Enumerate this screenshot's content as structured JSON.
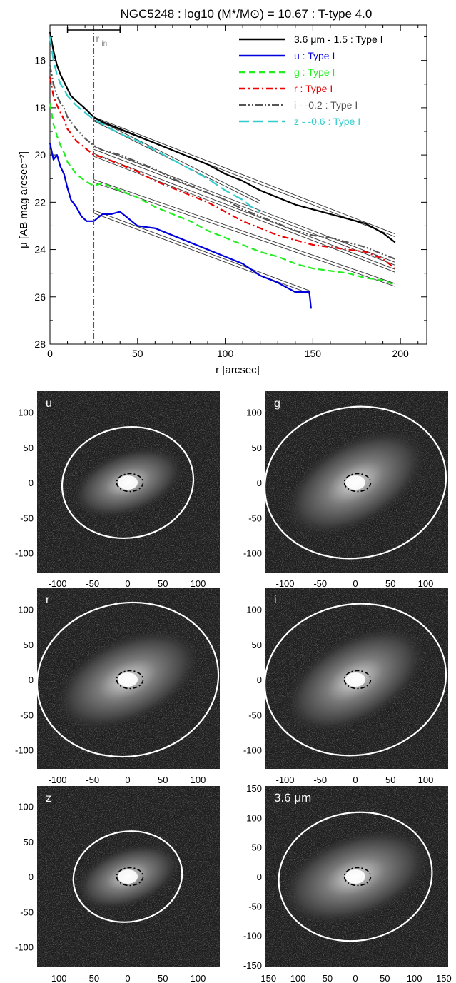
{
  "chart_data": [
    {
      "type": "line",
      "title": "NGC5248 : log10 (M*/M⊙) = 10.67 : T-type 4.0",
      "xlabel": "r [arcsec]",
      "ylabel": "μ [AB mag arcsec⁻²]",
      "xlim": [
        0,
        215
      ],
      "ylim": [
        28,
        14.5
      ],
      "y_inverted": true,
      "xticks": [
        "0",
        "50",
        "100",
        "150",
        "200"
      ],
      "yticks": [
        "16",
        "18",
        "20",
        "22",
        "24",
        "26",
        "28"
      ],
      "grid": false,
      "legend_position": "top-right",
      "annotation": {
        "label": "r",
        "subscript": "in",
        "r_in": 25,
        "bar_range": [
          10,
          40
        ]
      },
      "series": [
        {
          "name": "3.6 μm - 1.5 : Type I",
          "color": "#000000",
          "dash": "solid",
          "x": [
            0,
            2,
            4,
            6,
            8,
            10,
            12,
            15,
            18,
            21,
            25,
            30,
            40,
            50,
            60,
            70,
            80,
            90,
            100,
            110,
            120,
            130,
            140,
            150,
            160,
            170,
            180,
            190,
            197
          ],
          "y": [
            14.8,
            15.6,
            16.2,
            16.6,
            16.9,
            17.2,
            17.5,
            17.7,
            17.9,
            18.1,
            18.4,
            18.6,
            18.9,
            19.2,
            19.5,
            19.8,
            20.1,
            20.4,
            20.8,
            21.1,
            21.5,
            21.8,
            22.1,
            22.3,
            22.5,
            22.7,
            22.9,
            23.3,
            23.7
          ],
          "fit": {
            "x0": 25,
            "y0": 18.45,
            "x1": 197,
            "y1": 23.4
          }
        },
        {
          "name": "u : Type I",
          "color": "#0000dd",
          "dash": "solid",
          "x": [
            0,
            2,
            4,
            6,
            8,
            10,
            12,
            15,
            18,
            21,
            25,
            30,
            35,
            40,
            45,
            50,
            60,
            70,
            80,
            90,
            100,
            110,
            120,
            130,
            140,
            145,
            148,
            149
          ],
          "y": [
            19.5,
            20.2,
            20.0,
            20.5,
            20.8,
            21.4,
            21.9,
            22.2,
            22.6,
            22.8,
            22.8,
            22.5,
            22.5,
            22.4,
            22.7,
            23.0,
            23.1,
            23.4,
            23.7,
            24.0,
            24.3,
            24.6,
            25.1,
            25.4,
            25.8,
            25.8,
            25.8,
            26.5
          ],
          "fit": {
            "x0": 25,
            "y0": 22.4,
            "x1": 148,
            "y1": 25.8
          }
        },
        {
          "name": "g : Type I",
          "color": "#22ee22",
          "dash": "dash",
          "x": [
            0,
            2,
            4,
            6,
            8,
            10,
            15,
            20,
            25,
            30,
            40,
            50,
            60,
            70,
            80,
            90,
            100,
            110,
            120,
            130,
            140,
            150,
            160,
            170,
            180,
            190,
            197
          ],
          "y": [
            17.8,
            18.7,
            19.2,
            19.6,
            19.9,
            20.3,
            20.8,
            21.1,
            21.3,
            21.2,
            21.5,
            21.8,
            22.2,
            22.5,
            22.8,
            23.2,
            23.5,
            23.8,
            24.1,
            24.3,
            24.6,
            24.8,
            24.9,
            25.0,
            25.2,
            25.3,
            25.5
          ],
          "fit": {
            "x0": 25,
            "y0": 21.1,
            "x1": 197,
            "y1": 25.5
          }
        },
        {
          "name": "r : Type I",
          "color": "#ee0000",
          "dash": "dashdot",
          "x": [
            0,
            2,
            4,
            6,
            8,
            10,
            15,
            20,
            25,
            30,
            40,
            50,
            60,
            70,
            80,
            90,
            100,
            110,
            120,
            130,
            140,
            150,
            160,
            170,
            180,
            190,
            197
          ],
          "y": [
            16.7,
            17.5,
            17.9,
            18.2,
            18.5,
            18.9,
            19.4,
            19.7,
            20.0,
            20.1,
            20.4,
            20.7,
            21.1,
            21.4,
            21.7,
            22.0,
            22.4,
            22.8,
            23.1,
            23.4,
            23.6,
            23.8,
            23.9,
            24.0,
            24.1,
            24.4,
            24.8
          ],
          "fit": {
            "x0": 25,
            "y0": 20.0,
            "x1": 197,
            "y1": 24.9
          }
        },
        {
          "name": "i - -0.2 : Type I",
          "color": "#555555",
          "dash": "dashdotdot",
          "x": [
            0,
            2,
            4,
            6,
            8,
            10,
            15,
            20,
            25,
            30,
            40,
            50,
            60,
            70,
            80,
            90,
            100,
            110,
            120,
            130,
            140,
            150,
            160,
            170,
            180,
            190,
            197
          ],
          "y": [
            16.2,
            17.0,
            17.5,
            17.8,
            18.0,
            18.4,
            18.9,
            19.3,
            19.6,
            19.8,
            20.0,
            20.3,
            20.6,
            21.0,
            21.3,
            21.6,
            21.9,
            22.3,
            22.6,
            22.9,
            23.2,
            23.4,
            23.5,
            23.7,
            23.9,
            24.2,
            24.4
          ],
          "fit": {
            "x0": 25,
            "y0": 19.7,
            "x1": 197,
            "y1": 24.6
          }
        },
        {
          "name": "z - -0.6 : Type I",
          "color": "#33cccc",
          "dash": "longdash",
          "x": [
            0,
            2,
            4,
            6,
            8,
            10,
            15,
            20,
            25,
            30,
            40,
            50,
            60,
            70,
            80,
            90,
            100,
            110,
            115,
            120
          ],
          "y": [
            15.0,
            16.0,
            16.6,
            17.0,
            17.2,
            17.5,
            17.9,
            18.2,
            18.5,
            18.7,
            19.1,
            19.4,
            19.8,
            20.2,
            20.6,
            21.0,
            21.5,
            21.9,
            22.2,
            22.4
          ],
          "fit": {
            "x0": 25,
            "y0": 18.5,
            "x1": 120,
            "y1": 22.0
          }
        }
      ]
    },
    {
      "type": "image-panels",
      "panels": [
        {
          "label": "u",
          "xticks": [
            "-100",
            "-50",
            "0",
            "50",
            "100"
          ],
          "yticks": [
            "100",
            "50",
            "0",
            "-50",
            "-100"
          ],
          "ellipse_semi_major": 105,
          "ellipse_semi_minor": 88
        },
        {
          "label": "g",
          "xticks": [
            "-100",
            "-50",
            "0",
            "50",
            "100"
          ],
          "yticks": [
            "100",
            "50",
            "0",
            "-50",
            "-100"
          ],
          "ellipse_semi_major": 145,
          "ellipse_semi_minor": 120
        },
        {
          "label": "r",
          "xticks": [
            "-100",
            "-50",
            "0",
            "50",
            "100"
          ],
          "yticks": [
            "100",
            "50",
            "0",
            "-50",
            "-100"
          ],
          "ellipse_semi_major": 145,
          "ellipse_semi_minor": 122
        },
        {
          "label": "i",
          "xticks": [
            "-100",
            "-50",
            "0",
            "50",
            "100"
          ],
          "yticks": [
            "100",
            "50",
            "0",
            "-50",
            "-100"
          ],
          "ellipse_semi_major": 145,
          "ellipse_semi_minor": 120
        },
        {
          "label": "z",
          "xticks": [
            "-100",
            "-50",
            "0",
            "50",
            "100"
          ],
          "yticks": [
            "100",
            "50",
            "0",
            "-50",
            "-100"
          ],
          "ellipse_semi_major": 87,
          "ellipse_semi_minor": 72
        },
        {
          "label": "3.6 μm",
          "xticks": [
            "-150",
            "-100",
            "-50",
            "0",
            "50",
            "100",
            "150"
          ],
          "yticks": [
            "150",
            "100",
            "50",
            "0",
            "-50",
            "-100",
            "-150"
          ],
          "ellipse_semi_major": 130,
          "ellipse_semi_minor": 108
        }
      ]
    }
  ]
}
